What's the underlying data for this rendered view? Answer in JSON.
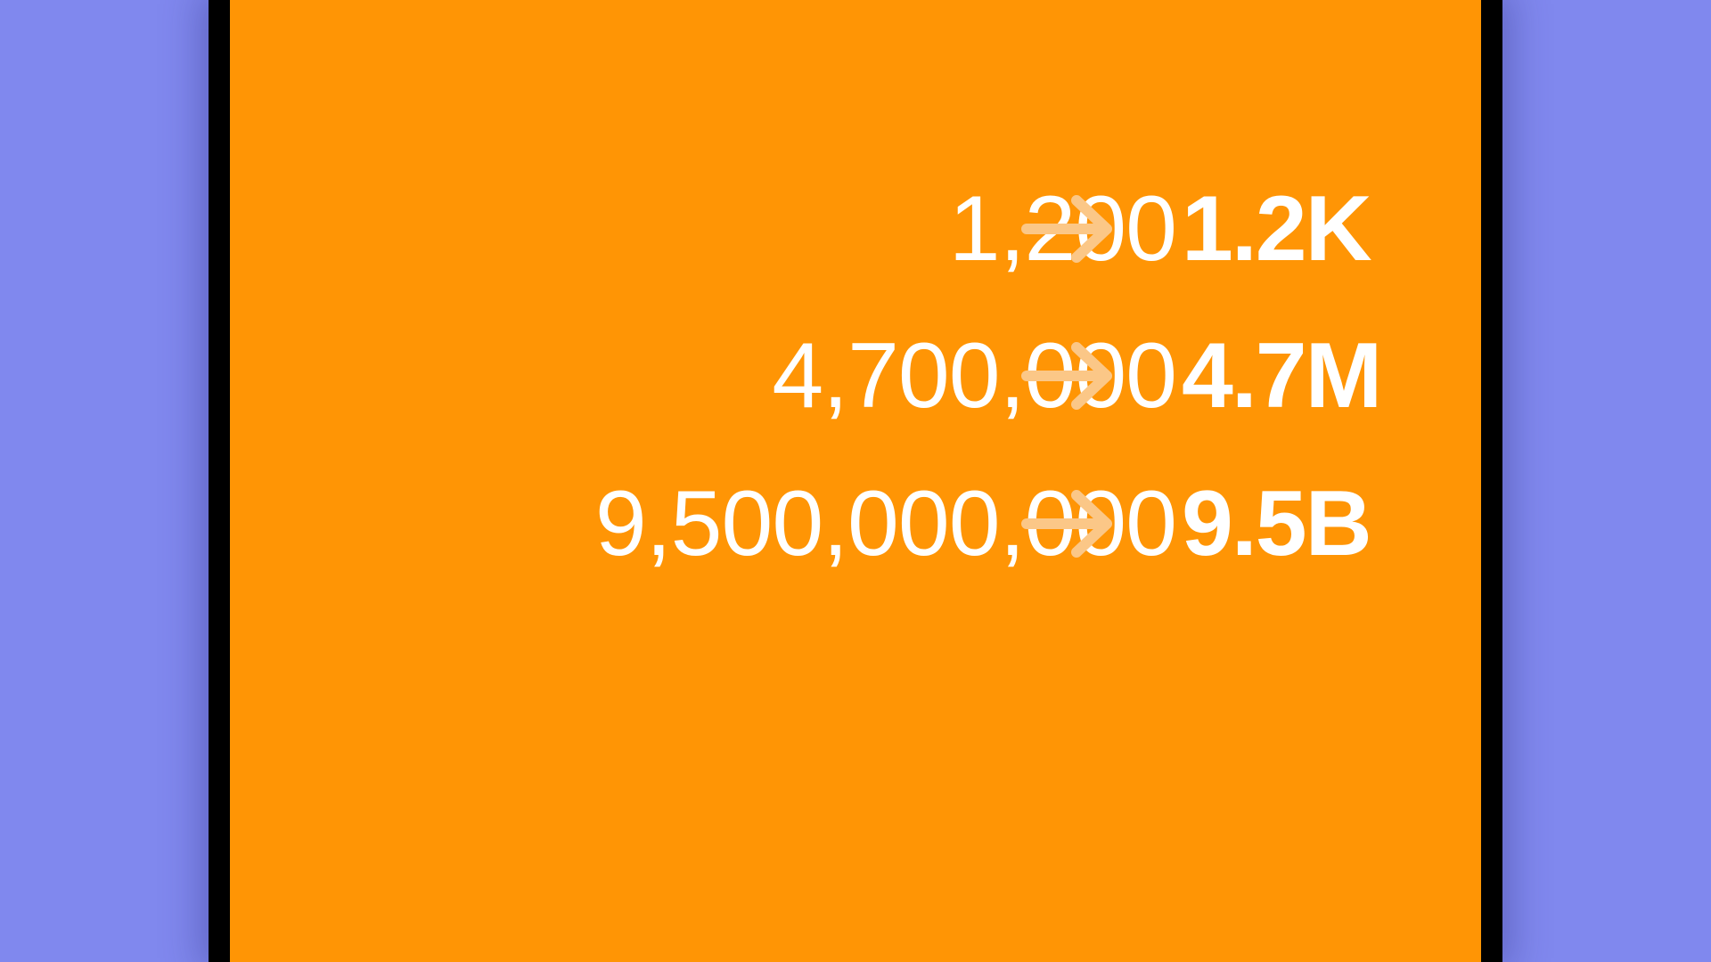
{
  "colors": {
    "background": "#8088ee",
    "device_frame": "#000000",
    "screen": "#ff9505",
    "text": "#ffffff",
    "arrow": "#fbc787"
  },
  "rows": [
    {
      "raw": "1,200",
      "formatted": "1.2K",
      "arrow_icon": "arrow-right-icon"
    },
    {
      "raw": "4,700,000",
      "formatted": "4.7M",
      "arrow_icon": "arrow-right-icon"
    },
    {
      "raw": "9,500,000,000",
      "formatted": "9.5B",
      "arrow_icon": "arrow-right-icon"
    }
  ]
}
